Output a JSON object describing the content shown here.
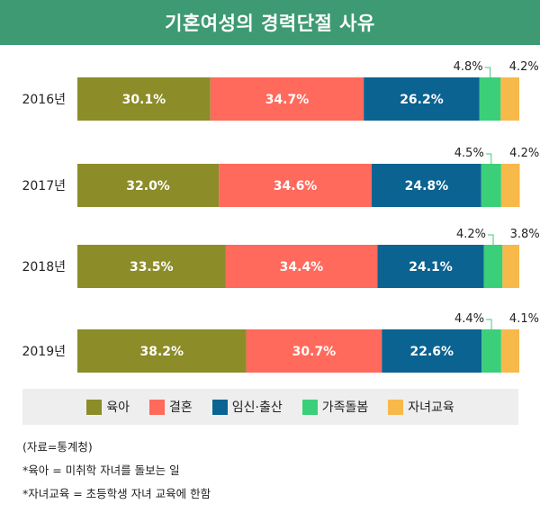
{
  "title": "기혼여성의 경력단절 사유",
  "chart_data": {
    "type": "bar",
    "orientation": "horizontal",
    "stacked": true,
    "unit": "%",
    "categories": [
      "2016년",
      "2017년",
      "2018년",
      "2019년"
    ],
    "series": [
      {
        "name": "육아",
        "color": "#8c8c29",
        "values": [
          30.1,
          32.0,
          33.5,
          38.2
        ],
        "labels": [
          "30.1%",
          "32.0%",
          "33.5%",
          "38.2%"
        ]
      },
      {
        "name": "결혼",
        "color": "#ff6a5c",
        "values": [
          34.7,
          34.6,
          34.4,
          30.7
        ],
        "labels": [
          "34.7%",
          "34.6%",
          "34.4%",
          "30.7%"
        ]
      },
      {
        "name": "임신·출산",
        "color": "#0b6391",
        "values": [
          26.2,
          24.8,
          24.1,
          22.6
        ],
        "labels": [
          "26.2%",
          "24.8%",
          "24.1%",
          "22.6%"
        ]
      },
      {
        "name": "가족돌봄",
        "color": "#3bcf79",
        "values": [
          4.8,
          4.5,
          4.2,
          4.4
        ],
        "labels": [
          "4.8%",
          "4.5%",
          "4.2%",
          "4.4%"
        ]
      },
      {
        "name": "자녀교육",
        "color": "#f7b94a",
        "values": [
          4.2,
          4.2,
          3.8,
          4.1
        ],
        "labels": [
          "4.2%",
          "4.2%",
          "3.8%",
          "4.1%"
        ]
      }
    ],
    "xlim": [
      0,
      100
    ],
    "legend_position": "bottom"
  },
  "notes": [
    "(자료=통계청)",
    "*육아 = 미취학 자녀를 돌보는 일",
    "*자녀교육 = 초등학생 자녀 교육에 한함"
  ]
}
